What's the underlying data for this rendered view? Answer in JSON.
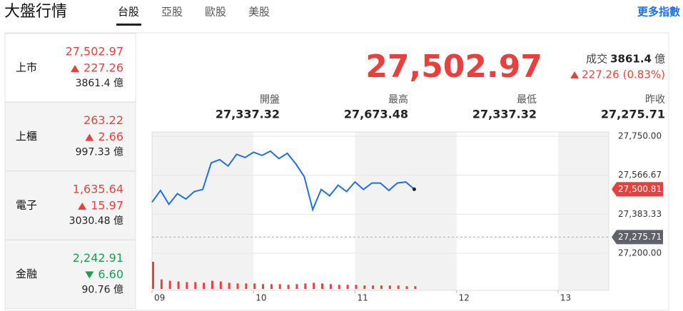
{
  "header": {
    "title": "大盤行情",
    "tabs": [
      "台股",
      "亞股",
      "歐股",
      "美股"
    ],
    "active_tab": 0,
    "more_link": "更多指數"
  },
  "markets": [
    {
      "name": "上市",
      "price": "27,502.97",
      "change": "227.26",
      "direction": "up",
      "volume": "3861.4 億"
    },
    {
      "name": "上櫃",
      "price": "263.22",
      "change": "2.66",
      "direction": "up",
      "volume": "997.33 億"
    },
    {
      "name": "電子",
      "price": "1,635.64",
      "change": "15.97",
      "direction": "up",
      "volume": "3030.48 億"
    },
    {
      "name": "金融",
      "price": "2,242.91",
      "change": "6.60",
      "direction": "down",
      "volume": "90.76 億"
    }
  ],
  "selected_market": 0,
  "summary": {
    "price": "27,502.97",
    "volume_label": "成交",
    "volume": "3861.4",
    "volume_unit": "億",
    "change": "227.26",
    "change_pct": "(0.83%)",
    "direction": "up",
    "stats": [
      {
        "label": "開盤",
        "value": "27,337.32"
      },
      {
        "label": "最高",
        "value": "27,673.48"
      },
      {
        "label": "最低",
        "value": "27,337.32"
      },
      {
        "label": "昨收",
        "value": "27,275.71"
      }
    ]
  },
  "chart_data": {
    "type": "line",
    "color": "#1f6fe5",
    "x": [
      540,
      545,
      550,
      555,
      560,
      565,
      570,
      575,
      580,
      585,
      590,
      595,
      600,
      605,
      610,
      615,
      620,
      625,
      630,
      635,
      640,
      645,
      650,
      655,
      660,
      665,
      670,
      675,
      680,
      685,
      690,
      695
    ],
    "values": [
      27440,
      27495,
      27430,
      27480,
      27455,
      27490,
      27500,
      27625,
      27640,
      27610,
      27665,
      27650,
      27675,
      27660,
      27680,
      27645,
      27670,
      27620,
      27560,
      27405,
      27500,
      27470,
      27520,
      27490,
      27535,
      27500,
      27530,
      27530,
      27495,
      27530,
      27535,
      27500.81
    ],
    "volume": {
      "color": "#e8413d",
      "values": [
        40,
        14,
        12,
        11,
        10,
        10,
        9,
        12,
        11,
        9,
        8,
        8,
        8,
        7,
        7,
        7,
        6,
        7,
        8,
        9,
        8,
        7,
        6,
        6,
        6,
        5,
        5,
        5,
        5,
        5,
        4,
        4
      ]
    },
    "xlim": [
      540,
      810
    ],
    "xticks": [
      {
        "value": 540,
        "label": "09"
      },
      {
        "value": 600,
        "label": "10"
      },
      {
        "value": 660,
        "label": "11"
      },
      {
        "value": 720,
        "label": "12"
      },
      {
        "value": 780,
        "label": "13"
      }
    ],
    "ylim": [
      27200,
      27750
    ],
    "yticks": [
      {
        "value": 27750,
        "label": "27,750.00"
      },
      {
        "value": 27566.67,
        "label": "27,566.67"
      },
      {
        "value": 27383.33,
        "label": "27,383.33"
      },
      {
        "value": 27200,
        "label": "27,200.00"
      }
    ],
    "last_price": {
      "value": 27500.81,
      "label": "27,500.81",
      "color": "#e8413d"
    },
    "previous_close": {
      "value": 27275.71,
      "label": "27,275.71",
      "color": "#5f6368"
    }
  }
}
